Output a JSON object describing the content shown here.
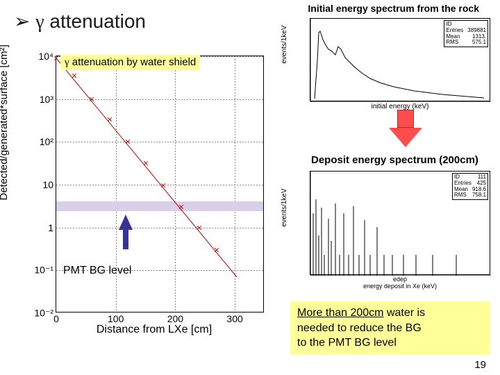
{
  "title": {
    "bullet": "➢",
    "gamma": "γ",
    "text": " attenuation"
  },
  "top_right_header": "Initial energy spectrum from the rock",
  "left_chart": {
    "type": "scatter-log",
    "y_label": "Detected/generated*surface [cm²]",
    "x_label": "Distance from LXe [cm]",
    "xlim": [
      0,
      350
    ],
    "ylim_exp": [
      -2,
      4
    ],
    "y_ticks": [
      "10⁴",
      "10³",
      "10²",
      "10",
      "1",
      "10⁻¹",
      "10⁻²"
    ],
    "x_ticks": [
      "0",
      "100",
      "200",
      "300"
    ],
    "grid_color": "#888888",
    "series": {
      "color": "#c00000",
      "marker": "x",
      "points": [
        {
          "x": 0,
          "yexp": 3.95
        },
        {
          "x": 30,
          "yexp": 3.55
        },
        {
          "x": 60,
          "yexp": 3.0
        },
        {
          "x": 90,
          "yexp": 2.52
        },
        {
          "x": 120,
          "yexp": 2.0
        },
        {
          "x": 150,
          "yexp": 1.5
        },
        {
          "x": 180,
          "yexp": 0.98
        },
        {
          "x": 210,
          "yexp": 0.48
        },
        {
          "x": 240,
          "yexp": 0.0
        },
        {
          "x": 270,
          "yexp": -0.52
        }
      ]
    },
    "annotation": {
      "gamma": "γ",
      "text": " attenuation by water shield"
    },
    "pmt_band": {
      "y_center_exp": 0.5,
      "color": "#d9cfe8",
      "label": "PMT BG level"
    },
    "arrow_color": "#333399"
  },
  "mini_top": {
    "type": "histogram-log",
    "y_label": "events/1keV",
    "x_label": "initial energy (keV)",
    "stats": {
      "ID": "",
      "Entries": "389881",
      "Mean": "1313.",
      "RMS": "575.1"
    }
  },
  "mini_bottom": {
    "type": "histogram",
    "y_label": "events/1keV",
    "x_label": "energy deposit in Xe (keV)",
    "stats": {
      "ID": "111",
      "Entries": "425",
      "Mean": "918.6",
      "RMS": "758.1"
    }
  },
  "deposit_label": "Deposit energy spectrum (200cm)",
  "red_arrow": {
    "fill": "#ff4d4d",
    "border": "#993333"
  },
  "conclusion": {
    "highlight": "More than 200cm",
    "rest": " water is\nneeded to reduce the BG\nto the PMT BG level",
    "bg": "#ffff99"
  },
  "slide_number": "19"
}
